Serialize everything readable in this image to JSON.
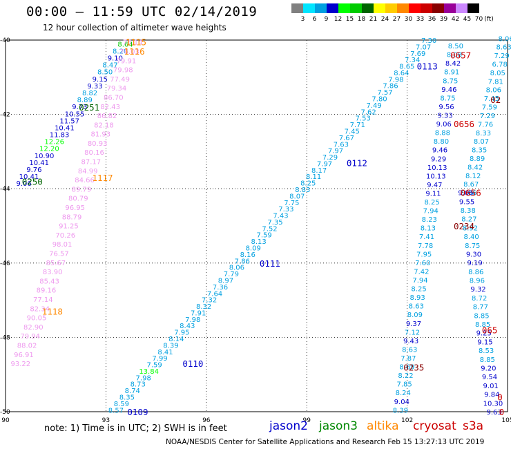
{
  "title": "00:00 – 11:59 UTC 02/14/2019",
  "subtitle": "12 hour collection of altimeter wave heights",
  "legend": {
    "unit": "(ft)",
    "labels": [
      "3",
      "6",
      "9",
      "12",
      "15",
      "18",
      "21",
      "24",
      "27",
      "30",
      "33",
      "36",
      "39",
      "42",
      "45",
      "70"
    ],
    "colors": [
      "#808080",
      "#00e5ff",
      "#00a0e0",
      "#0000cc",
      "#00ff00",
      "#00cc00",
      "#006400",
      "#ffff00",
      "#ffcc00",
      "#ff8800",
      "#ff0000",
      "#cc0000",
      "#880000",
      "#990099",
      "#cc88ff",
      "#000000"
    ]
  },
  "footer_note": "note:  1) Time is in UTC;  2) SWH is in feet",
  "satellites": [
    {
      "name": "jason2",
      "color": "#0000cc"
    },
    {
      "name": "jason3",
      "color": "#008800"
    },
    {
      "name": "altika",
      "color": "#ff8800"
    },
    {
      "name": "cryosat",
      "color": "#cc0000"
    },
    {
      "name": "s3a",
      "color": "#cc0000"
    }
  ],
  "credits": "NOAA/NESDIS Center for Satellite Applications and Research    Feb 15 13:27:13 UTC 2019",
  "chart_data": {
    "type": "scatter",
    "xlim": [
      90,
      105
    ],
    "ylim": [
      -50,
      -40
    ],
    "x_ticks": [
      "90",
      "93",
      "96",
      "99",
      "102",
      "105"
    ],
    "y_ticks": [
      "-40",
      "-42",
      "-44",
      "-46",
      "-48",
      "-50"
    ],
    "grid": true,
    "track_labels": [
      {
        "text": "1115",
        "x": 93.9,
        "y": -40.05,
        "color": "#ff8800"
      },
      {
        "text": "1116",
        "x": 93.85,
        "y": -40.3,
        "color": "#ff8800"
      },
      {
        "text": "0251",
        "x": 92.5,
        "y": -41.8,
        "color": "#006400"
      },
      {
        "text": "1117",
        "x": 92.9,
        "y": -43.7,
        "color": "#ff8800"
      },
      {
        "text": "0250",
        "x": 90.8,
        "y": -43.8,
        "color": "#006400"
      },
      {
        "text": "1118",
        "x": 91.4,
        "y": -47.3,
        "color": "#ff8800"
      },
      {
        "text": "0109",
        "x": 93.95,
        "y": -50.0,
        "color": "#0000cc"
      },
      {
        "text": "0110",
        "x": 95.6,
        "y": -48.7,
        "color": "#0000cc"
      },
      {
        "text": "0111",
        "x": 97.9,
        "y": -46.0,
        "color": "#0000cc"
      },
      {
        "text": "0112",
        "x": 100.5,
        "y": -43.3,
        "color": "#0000cc"
      },
      {
        "text": "0113",
        "x": 102.6,
        "y": -40.7,
        "color": "#0000cc"
      },
      {
        "text": "0657",
        "x": 103.6,
        "y": -40.4,
        "color": "#cc0000"
      },
      {
        "text": "0656",
        "x": 103.7,
        "y": -42.25,
        "color": "#cc0000"
      },
      {
        "text": "0656",
        "x": 103.9,
        "y": -44.1,
        "color": "#cc0000"
      },
      {
        "text": "0234",
        "x": 103.7,
        "y": -45.0,
        "color": "#880000"
      },
      {
        "text": "0235",
        "x": 102.2,
        "y": -48.8,
        "color": "#880000"
      },
      {
        "text": "02",
        "x": 104.8,
        "y": -41.6,
        "color": "#880000"
      },
      {
        "text": "065",
        "x": 104.7,
        "y": -47.8,
        "color": "#cc0000"
      },
      {
        "text": "0",
        "x": 104.85,
        "y": -49.6,
        "color": "#cc0000"
      },
      {
        "text": "0",
        "x": 104.9,
        "y": -50.0,
        "color": "#cc0000"
      }
    ],
    "tracks": [
      {
        "name": "jason3-left",
        "color": "#00a0e0",
        "x0": 93.58,
        "y0": -40.1,
        "x1": 90.55,
        "y1": -43.85,
        "values": [
          "8.64",
          "8.20",
          "9.10",
          "8.47",
          "8.50",
          "9.15",
          "9.33",
          "8.82",
          "8.89",
          "9.73",
          "10.55",
          "11.57",
          "10.41",
          "11.83",
          "12.26",
          "12.20",
          "10.90",
          "10.41",
          "9.76",
          "10.41",
          "9.06"
        ],
        "colors": [
          "#00cc00",
          "#00a0e0",
          "#0000cc",
          "#00a0e0",
          "#00a0e0",
          "#0000cc",
          "#0000cc",
          "#00a0e0",
          "#00a0e0",
          "#0000cc",
          "#0000cc",
          "#0000cc",
          "#0000cc",
          "#0000cc",
          "#00ff00",
          "#00ff00",
          "#0000cc",
          "#0000cc",
          "#0000cc",
          "#0000cc",
          "#0000cc"
        ]
      },
      {
        "name": "altika-left",
        "color": "#ee99ee",
        "x0": 93.8,
        "y0": -40.05,
        "x1": 90.45,
        "y1": -48.7,
        "values": [
          "76.14",
          "76.03",
          "79.91",
          "79.98",
          "77.49",
          "79.34",
          "86.70",
          "82.43",
          "86.82",
          "82.18",
          "81.93",
          "80.93",
          "80.16",
          "87.17",
          "84.99",
          "84.66",
          "89.79",
          "80.79",
          "96.95",
          "88.79",
          "91.25",
          "70.26",
          "98.01",
          "76.57",
          "85.67",
          "83.90",
          "85.43",
          "89.16",
          "77.14",
          "82.34",
          "90.05",
          "82.90",
          "79.94",
          "88.02",
          "96.91",
          "93.22"
        ],
        "colors": [
          "#ee99ee"
        ]
      },
      {
        "name": "jason2-diag",
        "color": "#00a0e0",
        "x0": 93.3,
        "y0": -49.95,
        "x1": 102.65,
        "y1": -40.0,
        "values": [
          "8.57",
          "8.59",
          "8.35",
          "8.74",
          "8.73",
          "7.98",
          "13.84",
          "7.59",
          "7.99",
          "8.41",
          "8.39",
          "8.14",
          "7.95",
          "8.43",
          "7.98",
          "7.91",
          "8.32",
          "7.32",
          "7.64",
          "7.36",
          "8.97",
          "7.79",
          "8.06",
          "7.86",
          "8.16",
          "8.09",
          "8.13",
          "7.59",
          "7.52",
          "7.35",
          "7.43",
          "7.33",
          "7.75",
          "8.07",
          "8.83",
          "8.25",
          "8.11",
          "8.17",
          "7.97",
          "7.29",
          "7.97",
          "7.63",
          "7.67",
          "7.45",
          "7.71",
          "7.53",
          "7.62",
          "7.49",
          "7.80",
          "7.57",
          "7.86",
          "7.98",
          "8.64",
          "8.65",
          "7.34",
          "7.69",
          "7.07",
          "7.30"
        ],
        "colors": [
          "#00a0e0",
          "#00a0e0",
          "#00a0e0",
          "#00a0e0",
          "#00a0e0",
          "#00a0e0",
          "#00ff00",
          "#00a0e0",
          "#00a0e0",
          "#00a0e0",
          "#00a0e0",
          "#00a0e0",
          "#00a0e0",
          "#00a0e0",
          "#00a0e0",
          "#00a0e0",
          "#00a0e0",
          "#00a0e0",
          "#00a0e0",
          "#00a0e0",
          "#00a0e0",
          "#00a0e0",
          "#00a0e0",
          "#00a0e0",
          "#00a0e0",
          "#00a0e0",
          "#00a0e0",
          "#00a0e0",
          "#00a0e0",
          "#00a0e0",
          "#00a0e0",
          "#00a0e0",
          "#00a0e0",
          "#00a0e0",
          "#00a0e0",
          "#00a0e0",
          "#00a0e0",
          "#00a0e0",
          "#00a0e0",
          "#00a0e0",
          "#00a0e0",
          "#00a0e0",
          "#00a0e0",
          "#00a0e0",
          "#00a0e0",
          "#00a0e0",
          "#00a0e0",
          "#00a0e0",
          "#00a0e0",
          "#00a0e0",
          "#00a0e0",
          "#00a0e0",
          "#00a0e0",
          "#00a0e0",
          "#00a0e0",
          "#00a0e0",
          "#00a0e0",
          "#00a0e0"
        ]
      },
      {
        "name": "cryosat-mid",
        "color": "#00a0e0",
        "x0": 103.45,
        "y0": -40.15,
        "x1": 101.8,
        "y1": -49.95,
        "values": [
          "8.50",
          "8.08",
          "8.42",
          "8.91",
          "8.75",
          "9.46",
          "8.75",
          "9.56",
          "9.33",
          "9.06",
          "8.88",
          "8.80",
          "9.46",
          "9.29",
          "10.13",
          "10.13",
          "9.47",
          "9.11",
          "8.25",
          "7.94",
          "8.23",
          "8.13",
          "7.41",
          "7.78",
          "7.95",
          "7.60",
          "7.42",
          "7.94",
          "8.25",
          "8.93",
          "8.63",
          "8.09",
          "9.37",
          "7.12",
          "9.43",
          "8.63",
          "7.87",
          "8.69",
          "8.22",
          "7.85",
          "8.24",
          "9.04",
          "8.39"
        ],
        "colors": [
          "#00a0e0",
          "#00a0e0",
          "#0000cc",
          "#00a0e0",
          "#00a0e0",
          "#0000cc",
          "#00a0e0",
          "#0000cc",
          "#0000cc",
          "#0000cc",
          "#00a0e0",
          "#00a0e0",
          "#0000cc",
          "#0000cc",
          "#0000cc",
          "#0000cc",
          "#0000cc",
          "#0000cc",
          "#00a0e0",
          "#00a0e0",
          "#00a0e0",
          "#00a0e0",
          "#00a0e0",
          "#00a0e0",
          "#00a0e0",
          "#00a0e0",
          "#00a0e0",
          "#00a0e0",
          "#00a0e0",
          "#00a0e0",
          "#00a0e0",
          "#00a0e0",
          "#0000cc",
          "#00a0e0",
          "#0000cc",
          "#00a0e0",
          "#00a0e0",
          "#00a0e0",
          "#00a0e0",
          "#00a0e0",
          "#00a0e0",
          "#0000cc",
          "#00a0e0"
        ]
      },
      {
        "name": "cryosat-right",
        "color": "#00a0e0",
        "x0": 104.95,
        "y0": -39.95,
        "x1": 103.85,
        "y1": -44.1,
        "values": [
          "8.06",
          "8.63",
          "7.29",
          "6.78",
          "8.05",
          "7.81",
          "8.06",
          "7.45",
          "7.59",
          "7.29",
          "7.76",
          "8.33",
          "8.07",
          "8.35",
          "8.89",
          "8.42",
          "8.12",
          "8.67",
          "9.06"
        ],
        "colors": [
          "#00a0e0"
        ]
      },
      {
        "name": "s3a-right",
        "color": "#00a0e0",
        "x0": 103.75,
        "y0": -44.1,
        "x1": 104.6,
        "y1": -50.0,
        "values": [
          "9.06",
          "9.55",
          "8.38",
          "8.27",
          "8.92",
          "8.40",
          "8.75",
          "9.30",
          "9.19",
          "8.86",
          "8.96",
          "9.32",
          "8.72",
          "8.77",
          "8.85",
          "8.85",
          "9.25",
          "9.15",
          "8.53",
          "8.85",
          "9.20",
          "9.54",
          "9.01",
          "9.84",
          "10.30",
          "9.63"
        ],
        "colors": [
          "#0000cc",
          "#0000cc",
          "#00a0e0",
          "#00a0e0",
          "#00a0e0",
          "#00a0e0",
          "#00a0e0",
          "#0000cc",
          "#0000cc",
          "#00a0e0",
          "#00a0e0",
          "#0000cc",
          "#00a0e0",
          "#00a0e0",
          "#00a0e0",
          "#00a0e0",
          "#0000cc",
          "#0000cc",
          "#00a0e0",
          "#00a0e0",
          "#0000cc",
          "#0000cc",
          "#0000cc",
          "#0000cc",
          "#0000cc",
          "#0000cc"
        ]
      }
    ]
  }
}
